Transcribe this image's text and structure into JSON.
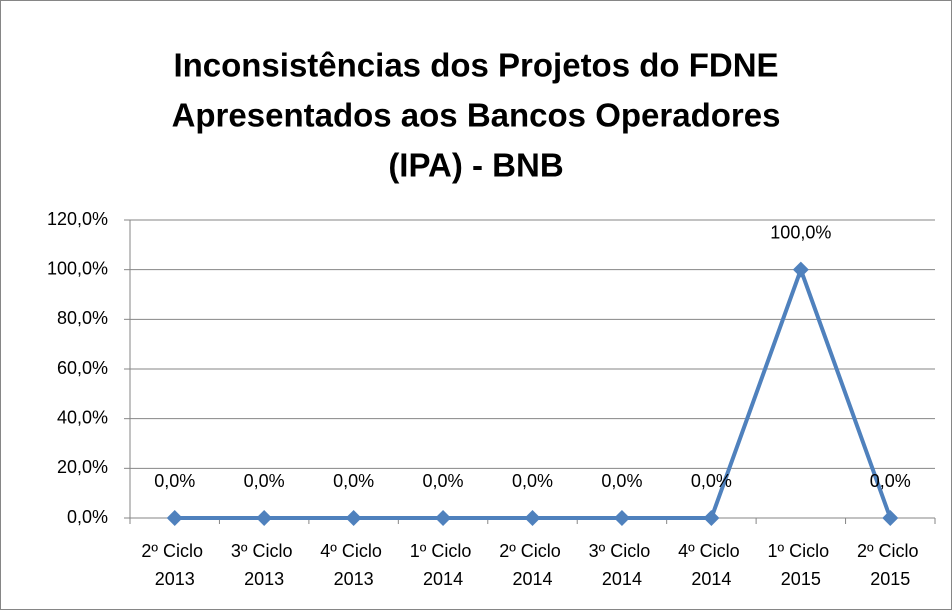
{
  "chart_data": {
    "type": "line",
    "title": [
      "Inconsistências dos Projetos do FDNE",
      "Apresentados aos Bancos Operadores",
      "(IPA) - BNB"
    ],
    "categories": [
      "2º Ciclo 2013",
      "3º Ciclo 2013",
      "4º Ciclo 2013",
      "1º Ciclo 2014",
      "2º Ciclo 2014",
      "3º Ciclo 2014",
      "4º Ciclo 2014",
      "1º Ciclo 2015",
      "2º Ciclo 2015"
    ],
    "series": [
      {
        "name": "IPA",
        "color": "#4f81bd",
        "values": [
          0,
          0,
          0,
          0,
          0,
          0,
          0,
          100,
          0
        ],
        "value_labels": [
          "0,0%",
          "0,0%",
          "0,0%",
          "0,0%",
          "0,0%",
          "0,0%",
          "0,0%",
          "100,0%",
          "0,0%"
        ]
      }
    ],
    "ylim": [
      0,
      120
    ],
    "yticks": [
      {
        "value": 0,
        "label": "0,0%"
      },
      {
        "value": 20,
        "label": "20,0%"
      },
      {
        "value": 40,
        "label": "40,0%"
      },
      {
        "value": 60,
        "label": "60,0%"
      },
      {
        "value": 80,
        "label": "80,0%"
      },
      {
        "value": 100,
        "label": "100,0%"
      },
      {
        "value": 120,
        "label": "120,0%"
      }
    ],
    "grid": true
  }
}
